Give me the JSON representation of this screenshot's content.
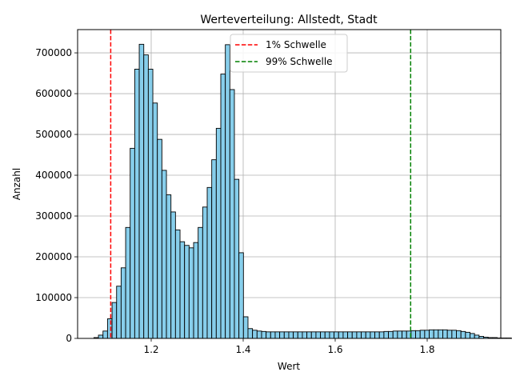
{
  "chart_data": {
    "type": "bar",
    "title": "Werteverteilung: Allstedt, Stadt",
    "xlabel": "Wert",
    "ylabel": "Anzahl",
    "xlim": [
      1.04,
      1.96
    ],
    "ylim": [
      0,
      757000
    ],
    "xticks": [
      1.2,
      1.4,
      1.6,
      1.8
    ],
    "xtick_labels": [
      "1.2",
      "1.4",
      "1.6",
      "1.8"
    ],
    "yticks": [
      0,
      100000,
      200000,
      300000,
      400000,
      500000,
      600000,
      700000
    ],
    "ytick_labels": [
      "0",
      "100000",
      "200000",
      "300000",
      "400000",
      "500000",
      "600000",
      "700000"
    ],
    "grid": true,
    "bar_color": "#87ceeb",
    "bar_edge_color": "#000000",
    "bin_width": 0.00985,
    "bin_start": 1.0755,
    "values": [
      2000,
      8000,
      18000,
      48000,
      88000,
      128000,
      173000,
      272000,
      466000,
      660000,
      721000,
      695000,
      660000,
      577000,
      488000,
      412000,
      352000,
      310000,
      266000,
      237000,
      228000,
      222000,
      235000,
      272000,
      322000,
      370000,
      438000,
      515000,
      648000,
      720000,
      610000,
      390000,
      210000,
      53000,
      24000,
      20000,
      18000,
      17000,
      16000,
      16000,
      16000,
      16000,
      16000,
      16000,
      16000,
      16000,
      16000,
      16000,
      16000,
      16000,
      16000,
      16000,
      16000,
      16000,
      16000,
      16000,
      16000,
      16000,
      16000,
      16000,
      16000,
      16000,
      16000,
      16000,
      17000,
      17000,
      18000,
      18000,
      18000,
      18000,
      19000,
      19000,
      20000,
      20000,
      21000,
      21000,
      21000,
      21000,
      20000,
      20000,
      19000,
      17000,
      15000,
      12000,
      8000,
      5000,
      3000,
      2000,
      2000,
      1000,
      1000,
      1000,
      500,
      500
    ],
    "thresholds": [
      {
        "name": "1% Schwelle",
        "x": 1.112,
        "color": "#ff0000"
      },
      {
        "name": "99% Schwelle",
        "x": 1.764,
        "color": "#008000"
      }
    ],
    "legend_position": "top-center"
  }
}
